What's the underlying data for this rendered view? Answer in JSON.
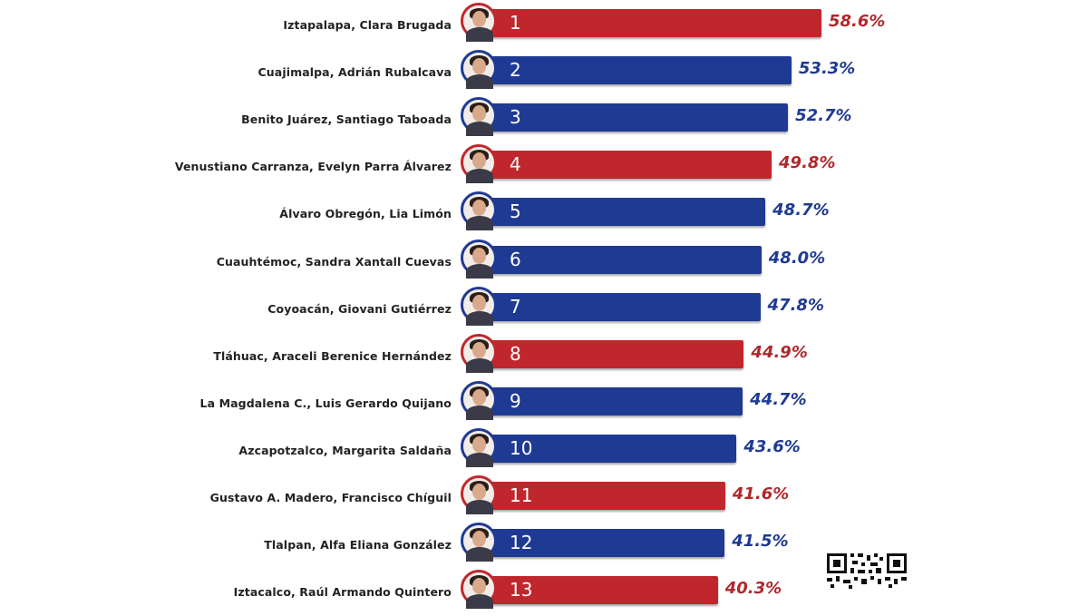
{
  "chart_data": {
    "type": "bar",
    "orientation": "horizontal",
    "unit": "%",
    "xlim": [
      0,
      60
    ],
    "colors": {
      "red": "#c0272d",
      "blue": "#1f3a93",
      "red_text": "#b0282c",
      "blue_text": "#1f3a93"
    },
    "rows": [
      {
        "rank": "1",
        "label": "Iztapalapa, Clara Brugada",
        "value": 58.6,
        "value_label": "58.6%",
        "party": "red"
      },
      {
        "rank": "2",
        "label": "Cuajimalpa, Adrián Rubalcava",
        "value": 53.3,
        "value_label": "53.3%",
        "party": "blue"
      },
      {
        "rank": "3",
        "label": "Benito Juárez, Santiago Taboada",
        "value": 52.7,
        "value_label": "52.7%",
        "party": "blue"
      },
      {
        "rank": "4",
        "label": "Venustiano Carranza, Evelyn Parra Álvarez",
        "value": 49.8,
        "value_label": "49.8%",
        "party": "red"
      },
      {
        "rank": "5",
        "label": "Álvaro Obregón, Lia Limón",
        "value": 48.7,
        "value_label": "48.7%",
        "party": "blue"
      },
      {
        "rank": "6",
        "label": "Cuauhtémoc, Sandra Xantall Cuevas",
        "value": 48.0,
        "value_label": "48.0%",
        "party": "blue"
      },
      {
        "rank": "7",
        "label": "Coyoacán, Giovani Gutiérrez",
        "value": 47.8,
        "value_label": "47.8%",
        "party": "blue"
      },
      {
        "rank": "8",
        "label": "Tláhuac, Araceli Berenice Hernández",
        "value": 44.9,
        "value_label": "44.9%",
        "party": "red"
      },
      {
        "rank": "9",
        "label": "La Magdalena C., Luis Gerardo Quijano",
        "value": 44.7,
        "value_label": "44.7%",
        "party": "blue"
      },
      {
        "rank": "10",
        "label": "Azcapotzalco, Margarita Saldaña",
        "value": 43.6,
        "value_label": "43.6%",
        "party": "blue"
      },
      {
        "rank": "11",
        "label": "Gustavo A. Madero, Francisco Chíguil",
        "value": 41.6,
        "value_label": "41.6%",
        "party": "red"
      },
      {
        "rank": "12",
        "label": "Tlalpan, Alfa Eliana González",
        "value": 41.5,
        "value_label": "41.5%",
        "party": "blue"
      },
      {
        "rank": "13",
        "label": "Iztacalco, Raúl Armando Quintero",
        "value": 40.3,
        "value_label": "40.3%",
        "party": "red"
      }
    ]
  },
  "icons": {
    "avatar": "candidate-photo-icon",
    "qr": "qr-code-icon"
  }
}
